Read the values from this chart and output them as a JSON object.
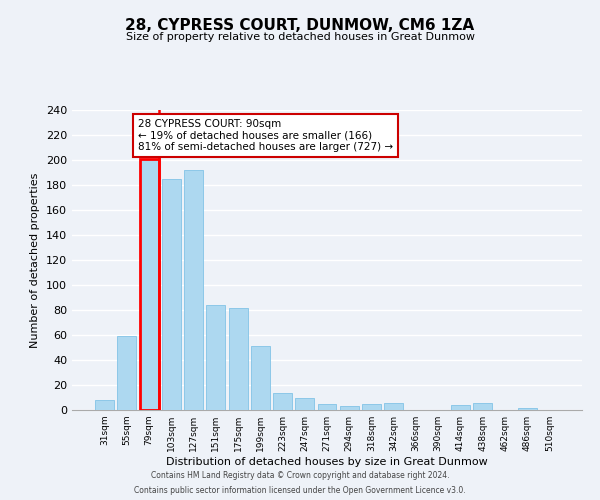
{
  "title": "28, CYPRESS COURT, DUNMOW, CM6 1ZA",
  "subtitle": "Size of property relative to detached houses in Great Dunmow",
  "xlabel": "Distribution of detached houses by size in Great Dunmow",
  "ylabel": "Number of detached properties",
  "bin_labels": [
    "31sqm",
    "55sqm",
    "79sqm",
    "103sqm",
    "127sqm",
    "151sqm",
    "175sqm",
    "199sqm",
    "223sqm",
    "247sqm",
    "271sqm",
    "294sqm",
    "318sqm",
    "342sqm",
    "366sqm",
    "390sqm",
    "414sqm",
    "438sqm",
    "462sqm",
    "486sqm",
    "510sqm"
  ],
  "bar_heights": [
    8,
    59,
    201,
    185,
    192,
    84,
    82,
    51,
    14,
    10,
    5,
    3,
    5,
    6,
    0,
    0,
    4,
    6,
    0,
    2,
    0
  ],
  "bar_color": "#add8f0",
  "bar_edgecolor": "#8cc8e8",
  "highlight_bar_index": 2,
  "highlight_color": "#ff0000",
  "annotation_line1": "28 CYPRESS COURT: 90sqm",
  "annotation_line2": "← 19% of detached houses are smaller (166)",
  "annotation_line3": "81% of semi-detached houses are larger (727) →",
  "annotation_box_edgecolor": "#cc0000",
  "annotation_box_facecolor": "#ffffff",
  "ylim": [
    0,
    240
  ],
  "yticks": [
    0,
    20,
    40,
    60,
    80,
    100,
    120,
    140,
    160,
    180,
    200,
    220,
    240
  ],
  "footer1": "Contains HM Land Registry data © Crown copyright and database right 2024.",
  "footer2": "Contains public sector information licensed under the Open Government Licence v3.0.",
  "bg_color": "#eef2f8"
}
